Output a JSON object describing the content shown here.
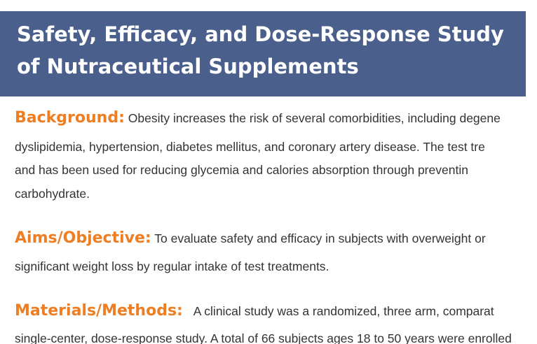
{
  "title": {
    "line1": "Safety, Efficacy, and Dose-Response Study",
    "line2": "of Nutraceutical Supplements"
  },
  "colors": {
    "title_band": "#4b5f8c",
    "heading": "#ef7d22",
    "body_text": "#333333"
  },
  "sections": {
    "background": {
      "heading": "Background:",
      "line1": "Obesity increases the risk of several comorbidities, including degene",
      "line2": "dyslipidemia, hypertension, diabetes mellitus, and coronary artery disease. The test tre",
      "line3": "and has been used for reducing glycemia and calories absorption through preventin",
      "line4": "carbohydrate."
    },
    "aims": {
      "heading": "Aims/Objective:",
      "line1": "To evaluate safety and efficacy in subjects with overweight or",
      "line2": "significant weight loss by regular intake of test treatments."
    },
    "methods": {
      "heading": "Materials/Methods:",
      "line1": "A clinical study was a randomized, three arm, comparat",
      "line2": "single-center, dose-response study. A total of 66 subjects ages 18 to 50 years were enrolled"
    }
  }
}
